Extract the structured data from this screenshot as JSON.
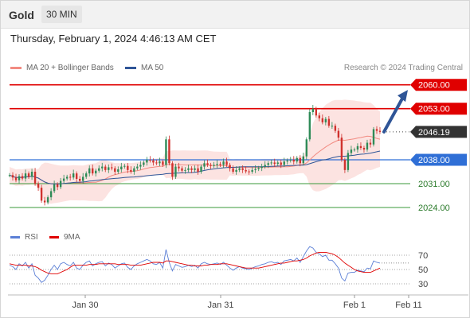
{
  "header": {
    "instrument": "Gold",
    "timeframe": "30 MIN"
  },
  "datetime": "Thursday, February 1, 2024 4:46:13 AM CET",
  "credit": "Research © 2024 Trading Central",
  "legend": [
    {
      "label": "MA 20 + Bollinger Bands",
      "color": "#f28b82"
    },
    {
      "label": "MA 50",
      "color": "#2f5597"
    }
  ],
  "rsi_legend": [
    {
      "label": "RSI",
      "color": "#5b7fd6"
    },
    {
      "label": "9MA",
      "color": "#e00000"
    }
  ],
  "chart_data": [
    {
      "type": "candlestick",
      "ylim": [
        2020.5,
        2062.5
      ],
      "x_ticks": [
        "Jan 30",
        "Jan 31",
        "Feb 1",
        "Feb 11"
      ],
      "levels": [
        {
          "value": 2060.0,
          "label": "2060.00",
          "kind": "resistance"
        },
        {
          "value": 2053.0,
          "label": "2053.00",
          "kind": "resistance"
        },
        {
          "value": 2046.19,
          "label": "2046.19",
          "kind": "last"
        },
        {
          "value": 2038.0,
          "label": "2038.00",
          "kind": "pivot"
        },
        {
          "value": 2031.0,
          "label": "2031.00",
          "kind": "support"
        },
        {
          "value": 2024.0,
          "label": "2024.00",
          "kind": "support"
        }
      ],
      "arrow": {
        "from": 2046.2,
        "to": 2058.5
      },
      "close": [
        2033.5,
        2032.8,
        2032.0,
        2033.2,
        2032.5,
        2034.0,
        2033.0,
        2034.5,
        2031.0,
        2029.8,
        2026.0,
        2025.5,
        2027.0,
        2028.8,
        2030.8,
        2030.0,
        2031.8,
        2032.5,
        2033.0,
        2032.8,
        2034.0,
        2032.4,
        2031.8,
        2033.0,
        2034.0,
        2035.5,
        2034.0,
        2034.8,
        2035.5,
        2036.0,
        2035.0,
        2035.8,
        2035.5,
        2034.5,
        2035.2,
        2036.0,
        2036.2,
        2035.0,
        2034.5,
        2035.5,
        2036.0,
        2036.5,
        2037.2,
        2038.0,
        2037.8,
        2037.2,
        2037.0,
        2037.5,
        2036.5,
        2044.0,
        2037.0,
        2033.0,
        2036.0,
        2035.5,
        2034.8,
        2035.0,
        2035.5,
        2035.0,
        2035.5,
        2034.5,
        2036.0,
        2037.0,
        2036.5,
        2036.2,
        2036.5,
        2036.8,
        2036.5,
        2037.5,
        2036.5,
        2035.5,
        2034.5,
        2035.0,
        2035.5,
        2035.0,
        2034.6,
        2034.5,
        2035.0,
        2035.3,
        2035.6,
        2036.0,
        2036.5,
        2037.0,
        2037.2,
        2036.8,
        2037.2,
        2036.5,
        2037.5,
        2037.8,
        2038.0,
        2037.5,
        2038.5,
        2037.0,
        2039.0,
        2044.0,
        2052.0,
        2053.0,
        2051.0,
        2050.2,
        2049.0,
        2050.0,
        2048.0,
        2048.0,
        2046.5,
        2044.5,
        2038.0,
        2035.0,
        2040.0,
        2041.0,
        2041.0,
        2042.0,
        2041.5,
        2041.0,
        2043.0,
        2042.5,
        2047.0,
        2046.5,
        2046.19
      ]
    },
    {
      "type": "line",
      "title": "RSI",
      "y_ticks": [
        70,
        50,
        30
      ],
      "ylim": [
        20,
        80
      ],
      "series": [
        {
          "name": "RSI",
          "values": [
            56,
            54,
            50,
            58,
            55,
            60,
            52,
            58,
            42,
            38,
            32,
            35,
            42,
            50,
            56,
            50,
            58,
            60,
            57,
            55,
            60,
            52,
            50,
            56,
            60,
            62,
            55,
            58,
            60,
            61,
            55,
            59,
            57,
            52,
            55,
            58,
            59,
            53,
            50,
            55,
            58,
            60,
            62,
            64,
            62,
            58,
            57,
            60,
            52,
            78,
            60,
            48,
            57,
            55,
            53,
            54,
            56,
            54,
            56,
            52,
            58,
            60,
            58,
            57,
            58,
            59,
            57,
            60,
            56,
            52,
            49,
            52,
            54,
            52,
            51,
            50,
            52,
            54,
            55,
            57,
            58,
            60,
            61,
            59,
            60,
            57,
            62,
            63,
            64,
            62,
            66,
            60,
            68,
            76,
            82,
            80,
            74,
            72,
            68,
            70,
            63,
            63,
            58,
            52,
            38,
            34,
            45,
            46,
            46,
            49,
            48,
            47,
            52,
            51,
            62,
            60,
            59
          ]
        },
        {
          "name": "9MA",
          "values": [
            58,
            57,
            56,
            56,
            56,
            56,
            55,
            55,
            54,
            52,
            49,
            47,
            45,
            44,
            44,
            44,
            46,
            48,
            50,
            53,
            56,
            56,
            56,
            56,
            56,
            57,
            57,
            57,
            58,
            58,
            58,
            58,
            58,
            58,
            57,
            57,
            57,
            57,
            56,
            56,
            56,
            56,
            57,
            58,
            59,
            60,
            60,
            60,
            59,
            62,
            62,
            61,
            60,
            59,
            58,
            57,
            56,
            56,
            55,
            55,
            55,
            56,
            56,
            57,
            57,
            57,
            58,
            58,
            58,
            57,
            56,
            55,
            54,
            53,
            52,
            52,
            52,
            52,
            52,
            53,
            54,
            55,
            56,
            57,
            58,
            59,
            59,
            60,
            61,
            62,
            62,
            63,
            64,
            66,
            69,
            71,
            73,
            74,
            74,
            74,
            73,
            72,
            70,
            67,
            63,
            59,
            56,
            53,
            50,
            48,
            47,
            46,
            46,
            46,
            48,
            50,
            52
          ]
        }
      ]
    }
  ]
}
